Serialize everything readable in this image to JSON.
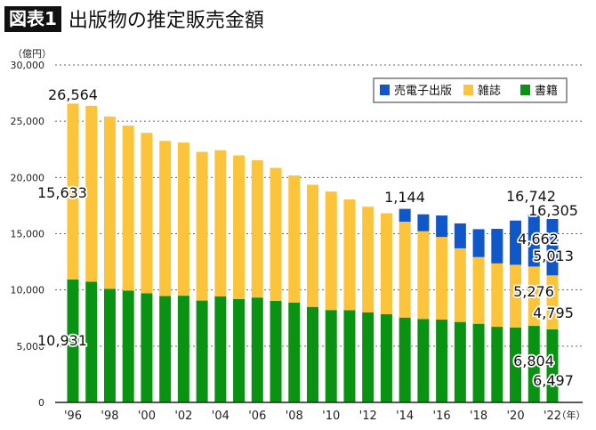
{
  "header": {
    "badge": "図表1",
    "title": "出版物の推定販売金額"
  },
  "chart_data": {
    "type": "bar",
    "stacked": true,
    "title": "出版物の推定販売金額",
    "ylabel": "（億円）",
    "xunit": "（年）",
    "ylim": [
      0,
      30000
    ],
    "yticks": [
      "0",
      "5,000",
      "10,000",
      "15,000",
      "20,000",
      "25,000",
      "30,000"
    ],
    "grid": true,
    "legend_position": "top-right",
    "categories": [
      "1996",
      "1997",
      "1998",
      "1999",
      "2000",
      "2001",
      "2002",
      "2003",
      "2004",
      "2005",
      "2006",
      "2007",
      "2008",
      "2009",
      "2010",
      "2011",
      "2012",
      "2013",
      "2014",
      "2015",
      "2016",
      "2017",
      "2018",
      "2019",
      "2020",
      "2021",
      "2022"
    ],
    "xtick_labels": [
      "'96",
      "'98",
      "'00",
      "'02",
      "'04",
      "'06",
      "'08",
      "'10",
      "'12",
      "'14",
      "'16",
      "'18",
      "'20",
      "'22"
    ],
    "series": [
      {
        "name": "書籍",
        "color": "#0a9312",
        "values": [
          10931,
          10730,
          10100,
          9936,
          9706,
          9456,
          9490,
          9056,
          9429,
          9197,
          9326,
          9026,
          8878,
          8492,
          8213,
          8199,
          8013,
          7851,
          7544,
          7419,
          7370,
          7152,
          6991,
          6723,
          6661,
          6804,
          6497
        ]
      },
      {
        "name": "雑誌",
        "color": "#fcc43a",
        "values": [
          15633,
          15644,
          15315,
          14672,
          14261,
          13794,
          13616,
          13222,
          12998,
          12767,
          12200,
          11827,
          11299,
          10864,
          10535,
          9844,
          9385,
          8972,
          8520,
          7801,
          7339,
          6548,
          5930,
          5637,
          5576,
          5276,
          4795
        ]
      },
      {
        "name": "売電子出版",
        "color": "#1057c9",
        "values": [
          0,
          0,
          0,
          0,
          0,
          0,
          0,
          0,
          0,
          0,
          0,
          0,
          0,
          0,
          0,
          0,
          0,
          0,
          1144,
          1502,
          1909,
          2215,
          2479,
          3072,
          3931,
          4662,
          5013
        ]
      }
    ],
    "legend_order": [
      "売電子出版",
      "雑誌",
      "書籍"
    ],
    "annotations": [
      {
        "text": "26,564",
        "year": "1996"
      },
      {
        "text": "15,633",
        "year": "1996"
      },
      {
        "text": "10,931",
        "year": "1996"
      },
      {
        "text": "1,144",
        "year": "2014"
      },
      {
        "text": "16,742",
        "year": "2021"
      },
      {
        "text": "16,305",
        "year": "2022"
      },
      {
        "text": "4,662",
        "year": "2021"
      },
      {
        "text": "5,013",
        "year": "2022"
      },
      {
        "text": "5,276",
        "year": "2021"
      },
      {
        "text": "4,795",
        "year": "2022"
      },
      {
        "text": "6,804",
        "year": "2021"
      },
      {
        "text": "6,497",
        "year": "2022"
      }
    ]
  }
}
